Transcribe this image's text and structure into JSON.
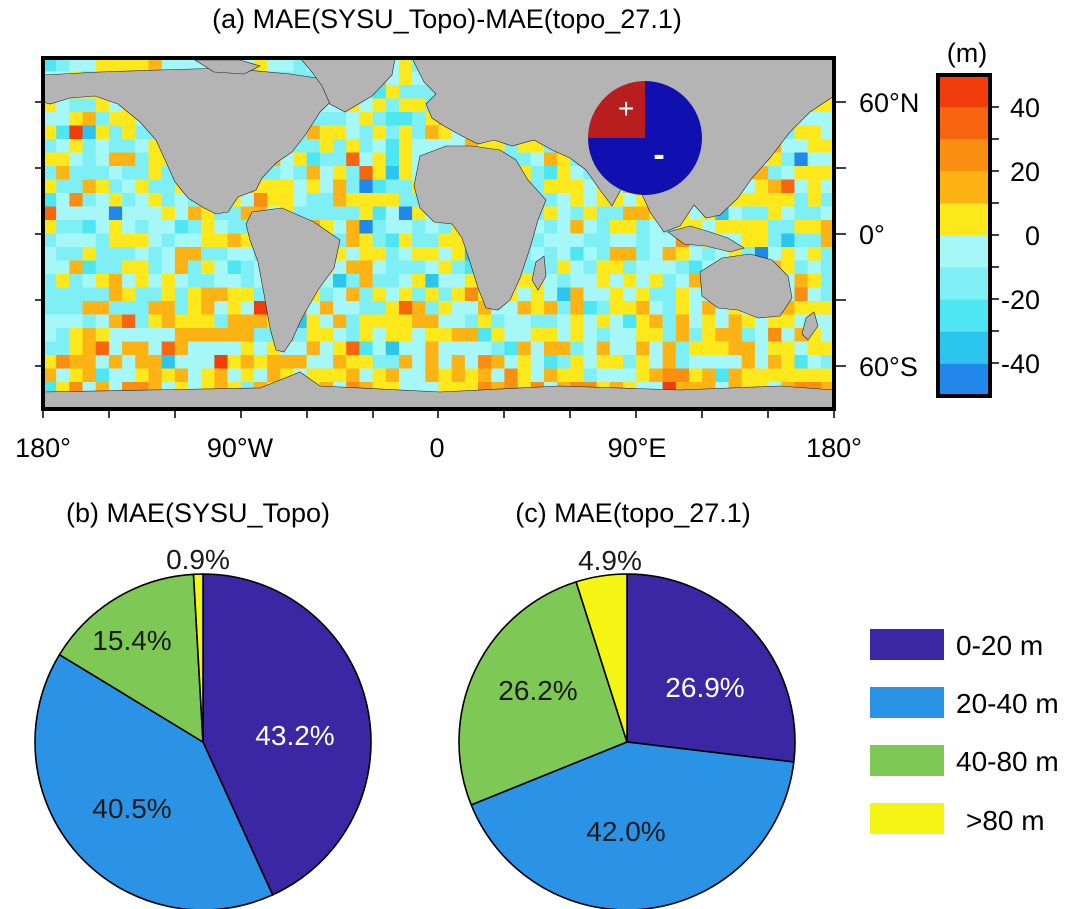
{
  "colors": {
    "land": "#b4b4b4",
    "frame": "#000000",
    "pie_red": "#b81e1e",
    "pie_blue": "#1010b0"
  },
  "map_panel": {
    "title": "(a) MAE(SYSU_Topo)-MAE(topo_27.1)",
    "x_ticks": [
      "180°",
      "90°W",
      "0",
      "90°E",
      "180°"
    ],
    "y_ticks": [
      "60°N",
      "0°",
      "60°S"
    ],
    "inset_plus": "+",
    "inset_minus": "-"
  },
  "colorbar": {
    "unit": "(m)",
    "tick_labels": [
      "40",
      "20",
      "0",
      "-20",
      "-40"
    ]
  },
  "legend": {
    "items": [
      {
        "label": "0-20 m",
        "color": "#3b27a3"
      },
      {
        "label": "20-40 m",
        "color": "#2b93e6"
      },
      {
        "label": "40-80 m",
        "color": "#7ec955"
      },
      {
        "label": ">80 m",
        "color": "#f5f513"
      }
    ]
  },
  "chart_data": [
    {
      "type": "heatmap",
      "title": "(a) MAE(SYSU_Topo)-MAE(topo_27.1)",
      "x_range": [
        -180,
        180
      ],
      "y_range": [
        -72,
        78
      ],
      "x_ticks": [
        "180°",
        "90°W",
        "0",
        "90°E",
        "180°"
      ],
      "y_ticks": [
        "60°N",
        "0°",
        "60°S"
      ],
      "colorbar": {
        "unit": "(m)",
        "range": [
          -50,
          50
        ],
        "step": 10,
        "ticks": [
          40,
          20,
          0,
          -20,
          -40
        ],
        "bins": [
          {
            "from": 40,
            "to": 50,
            "color": "#f23c0c"
          },
          {
            "from": 30,
            "to": 40,
            "color": "#f7660e"
          },
          {
            "from": 20,
            "to": 30,
            "color": "#fa8e10"
          },
          {
            "from": 10,
            "to": 20,
            "color": "#fdb313"
          },
          {
            "from": 0,
            "to": 10,
            "color": "#fde81c"
          },
          {
            "from": -10,
            "to": 0,
            "color": "#a6f8f8"
          },
          {
            "from": -20,
            "to": -10,
            "color": "#7ef0f5"
          },
          {
            "from": -30,
            "to": -20,
            "color": "#4ee6f2"
          },
          {
            "from": -40,
            "to": -30,
            "color": "#2cc5ee"
          },
          {
            "from": -50,
            "to": -40,
            "color": "#2088ea"
          }
        ]
      },
      "inset_pie": {
        "positive_fraction": 0.25,
        "negative_fraction": 0.75
      }
    },
    {
      "type": "pie",
      "title": "(b) MAE(SYSU_Topo)",
      "labels": [
        "0-20 m",
        "20-40 m",
        "40-80 m",
        ">80 m"
      ],
      "values": [
        43.2,
        40.5,
        15.4,
        0.9
      ],
      "value_labels": [
        "43.2%",
        "40.5%",
        "15.4%",
        "0.9%"
      ]
    },
    {
      "type": "pie",
      "title": "(c) MAE(topo_27.1)",
      "labels": [
        "0-20 m",
        "20-40 m",
        "40-80 m",
        ">80 m"
      ],
      "values": [
        26.9,
        42.0,
        26.2,
        4.9
      ],
      "value_labels": [
        "26.9%",
        "42.0%",
        "26.2%",
        "4.9%"
      ]
    }
  ]
}
